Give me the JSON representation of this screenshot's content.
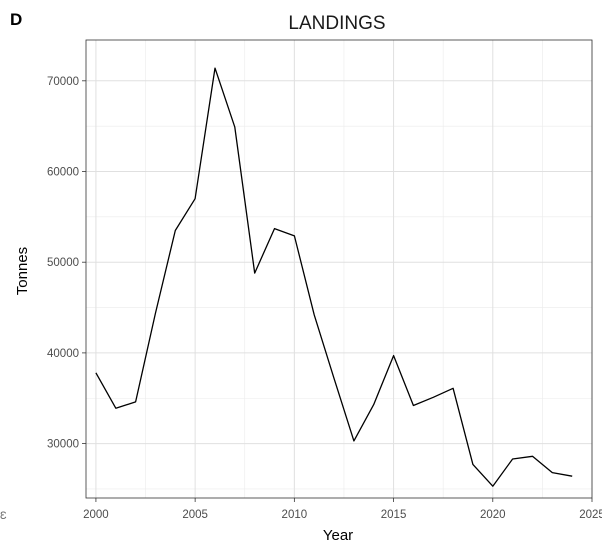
{
  "panel_label": "D",
  "stray_mark": "Ɛ",
  "chart_data": {
    "type": "line",
    "title": "LANDINGS",
    "xlabel": "Year",
    "ylabel": "Tonnes",
    "xlim": [
      1999.5,
      2025
    ],
    "ylim": [
      24000,
      74500
    ],
    "x_ticks": [
      2000,
      2005,
      2010,
      2015,
      2020,
      2025
    ],
    "y_ticks": [
      30000,
      40000,
      50000,
      60000,
      70000
    ],
    "grid": true,
    "legend": "none",
    "line_color": "#000000",
    "x": [
      2000,
      2001,
      2002,
      2003,
      2004,
      2005,
      2006,
      2007,
      2008,
      2009,
      2010,
      2011,
      2012,
      2013,
      2014,
      2015,
      2016,
      2017,
      2018,
      2019,
      2020,
      2021,
      2022,
      2023,
      2024
    ],
    "series": [
      {
        "values": [
          37800,
          33900,
          34600,
          44400,
          53500,
          57000,
          71400,
          64900,
          48800,
          53700,
          52900,
          44200,
          37200,
          30300,
          34300,
          39700,
          34200,
          35100,
          36100,
          27700,
          25300,
          28300,
          28600,
          26800,
          26400
        ]
      }
    ]
  }
}
